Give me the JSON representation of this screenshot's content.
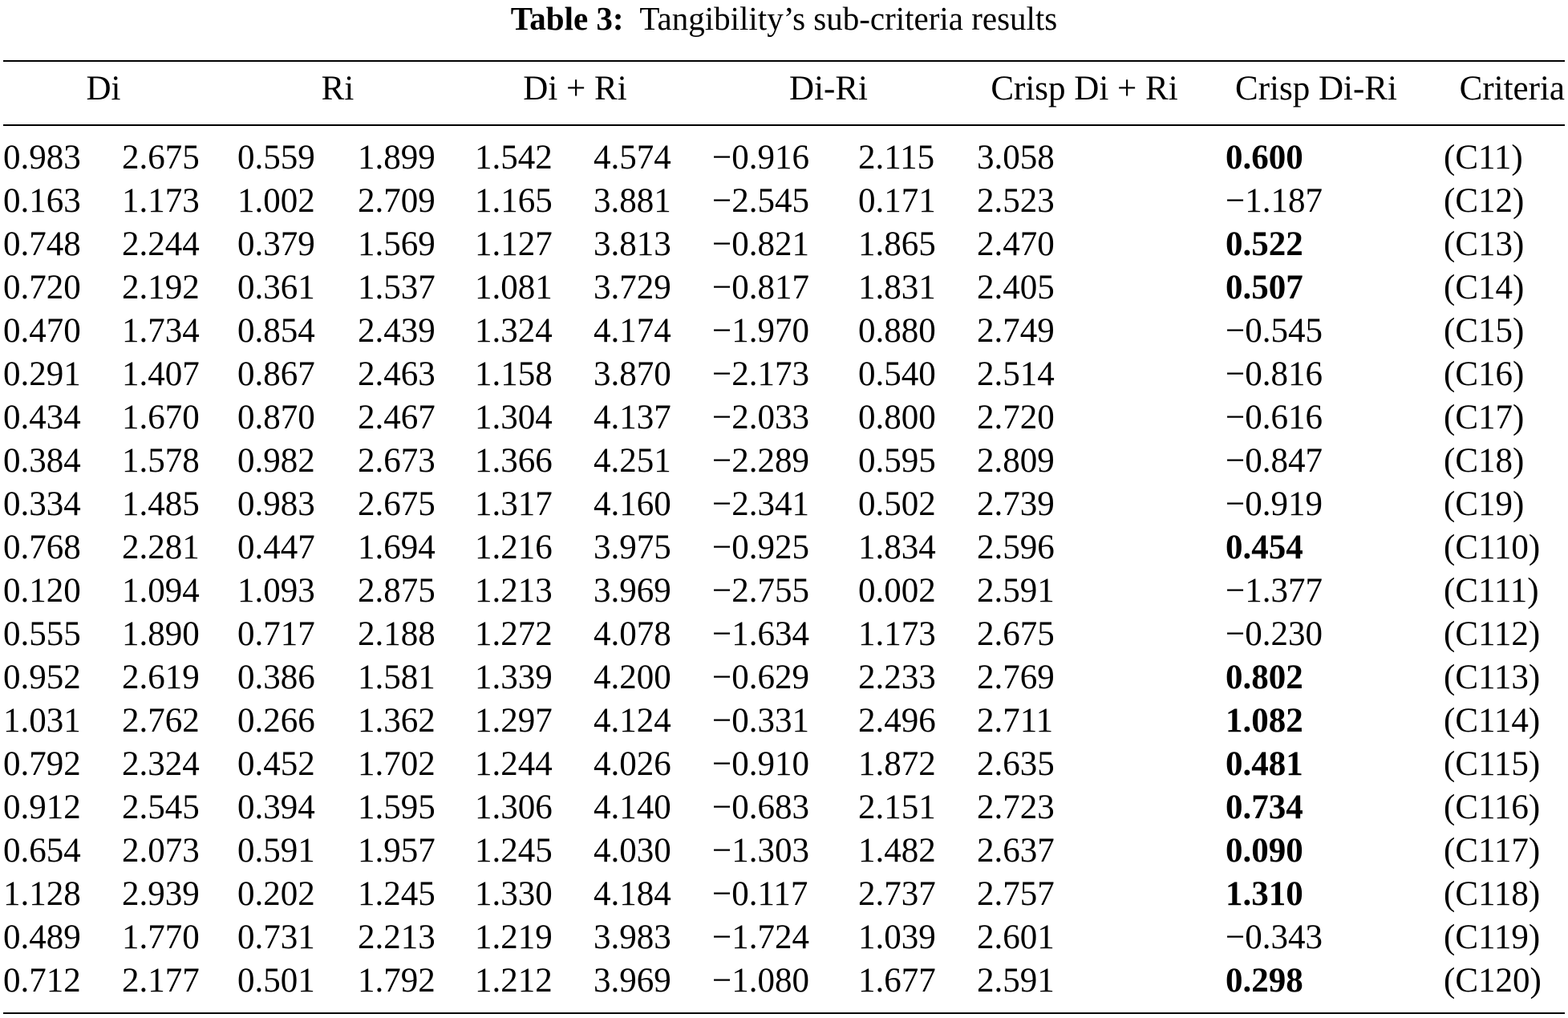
{
  "caption": {
    "label": "Table 3:",
    "text": "Tangibility’s sub-criteria results"
  },
  "headers": [
    "Di",
    "Ri",
    "Di + Ri",
    "Di-Ri",
    "Crisp Di + Ri",
    "Crisp Di-Ri",
    "Criteria"
  ],
  "rows": [
    {
      "values": [
        "0.983",
        "2.675",
        "0.559",
        "1.899",
        "1.542",
        "4.574",
        "−0.916",
        "2.115",
        "3.058",
        "0.600",
        "(C11)"
      ],
      "highlight": true
    },
    {
      "values": [
        "0.163",
        "1.173",
        "1.002",
        "2.709",
        "1.165",
        "3.881",
        "−2.545",
        "0.171",
        "2.523",
        "−1.187",
        "(C12)"
      ],
      "highlight": false
    },
    {
      "values": [
        "0.748",
        "2.244",
        "0.379",
        "1.569",
        "1.127",
        "3.813",
        "−0.821",
        "1.865",
        "2.470",
        "0.522",
        "(C13)"
      ],
      "highlight": true
    },
    {
      "values": [
        "0.720",
        "2.192",
        "0.361",
        "1.537",
        "1.081",
        "3.729",
        "−0.817",
        "1.831",
        "2.405",
        "0.507",
        "(C14)"
      ],
      "highlight": true
    },
    {
      "values": [
        "0.470",
        "1.734",
        "0.854",
        "2.439",
        "1.324",
        "4.174",
        "−1.970",
        "0.880",
        "2.749",
        "−0.545",
        "(C15)"
      ],
      "highlight": false
    },
    {
      "values": [
        "0.291",
        "1.407",
        "0.867",
        "2.463",
        "1.158",
        "3.870",
        "−2.173",
        "0.540",
        "2.514",
        "−0.816",
        "(C16)"
      ],
      "highlight": false
    },
    {
      "values": [
        "0.434",
        "1.670",
        "0.870",
        "2.467",
        "1.304",
        "4.137",
        "−2.033",
        "0.800",
        "2.720",
        "−0.616",
        "(C17)"
      ],
      "highlight": false
    },
    {
      "values": [
        "0.384",
        "1.578",
        "0.982",
        "2.673",
        "1.366",
        "4.251",
        "−2.289",
        "0.595",
        "2.809",
        "−0.847",
        "(C18)"
      ],
      "highlight": false
    },
    {
      "values": [
        "0.334",
        "1.485",
        "0.983",
        "2.675",
        "1.317",
        "4.160",
        "−2.341",
        "0.502",
        "2.739",
        "−0.919",
        "(C19)"
      ],
      "highlight": false
    },
    {
      "values": [
        "0.768",
        "2.281",
        "0.447",
        "1.694",
        "1.216",
        "3.975",
        "−0.925",
        "1.834",
        "2.596",
        "0.454",
        "(C110)"
      ],
      "highlight": true
    },
    {
      "values": [
        "0.120",
        "1.094",
        "1.093",
        "2.875",
        "1.213",
        "3.969",
        "−2.755",
        "0.002",
        "2.591",
        "−1.377",
        "(C111)"
      ],
      "highlight": false
    },
    {
      "values": [
        "0.555",
        "1.890",
        "0.717",
        "2.188",
        "1.272",
        "4.078",
        "−1.634",
        "1.173",
        "2.675",
        "−0.230",
        "(C112)"
      ],
      "highlight": false
    },
    {
      "values": [
        "0.952",
        "2.619",
        "0.386",
        "1.581",
        "1.339",
        "4.200",
        "−0.629",
        "2.233",
        "2.769",
        "0.802",
        "(C113)"
      ],
      "highlight": true
    },
    {
      "values": [
        "1.031",
        "2.762",
        "0.266",
        "1.362",
        "1.297",
        "4.124",
        "−0.331",
        "2.496",
        "2.711",
        "1.082",
        "(C114)"
      ],
      "highlight": true
    },
    {
      "values": [
        "0.792",
        "2.324",
        "0.452",
        "1.702",
        "1.244",
        "4.026",
        "−0.910",
        "1.872",
        "2.635",
        "0.481",
        "(C115)"
      ],
      "highlight": true
    },
    {
      "values": [
        "0.912",
        "2.545",
        "0.394",
        "1.595",
        "1.306",
        "4.140",
        "−0.683",
        "2.151",
        "2.723",
        "0.734",
        "(C116)"
      ],
      "highlight": true
    },
    {
      "values": [
        "0.654",
        "2.073",
        "0.591",
        "1.957",
        "1.245",
        "4.030",
        "−1.303",
        "1.482",
        "2.637",
        "0.090",
        "(C117)"
      ],
      "highlight": true
    },
    {
      "values": [
        "1.128",
        "2.939",
        "0.202",
        "1.245",
        "1.330",
        "4.184",
        "−0.117",
        "2.737",
        "2.757",
        "1.310",
        "(C118)"
      ],
      "highlight": true
    },
    {
      "values": [
        "0.489",
        "1.770",
        "0.731",
        "2.213",
        "1.219",
        "3.983",
        "−1.724",
        "1.039",
        "2.601",
        "−0.343",
        "(C119)"
      ],
      "highlight": false
    },
    {
      "values": [
        "0.712",
        "2.177",
        "0.501",
        "1.792",
        "1.212",
        "3.969",
        "−1.080",
        "1.677",
        "2.591",
        "0.298",
        "(C120)"
      ],
      "highlight": true
    }
  ]
}
